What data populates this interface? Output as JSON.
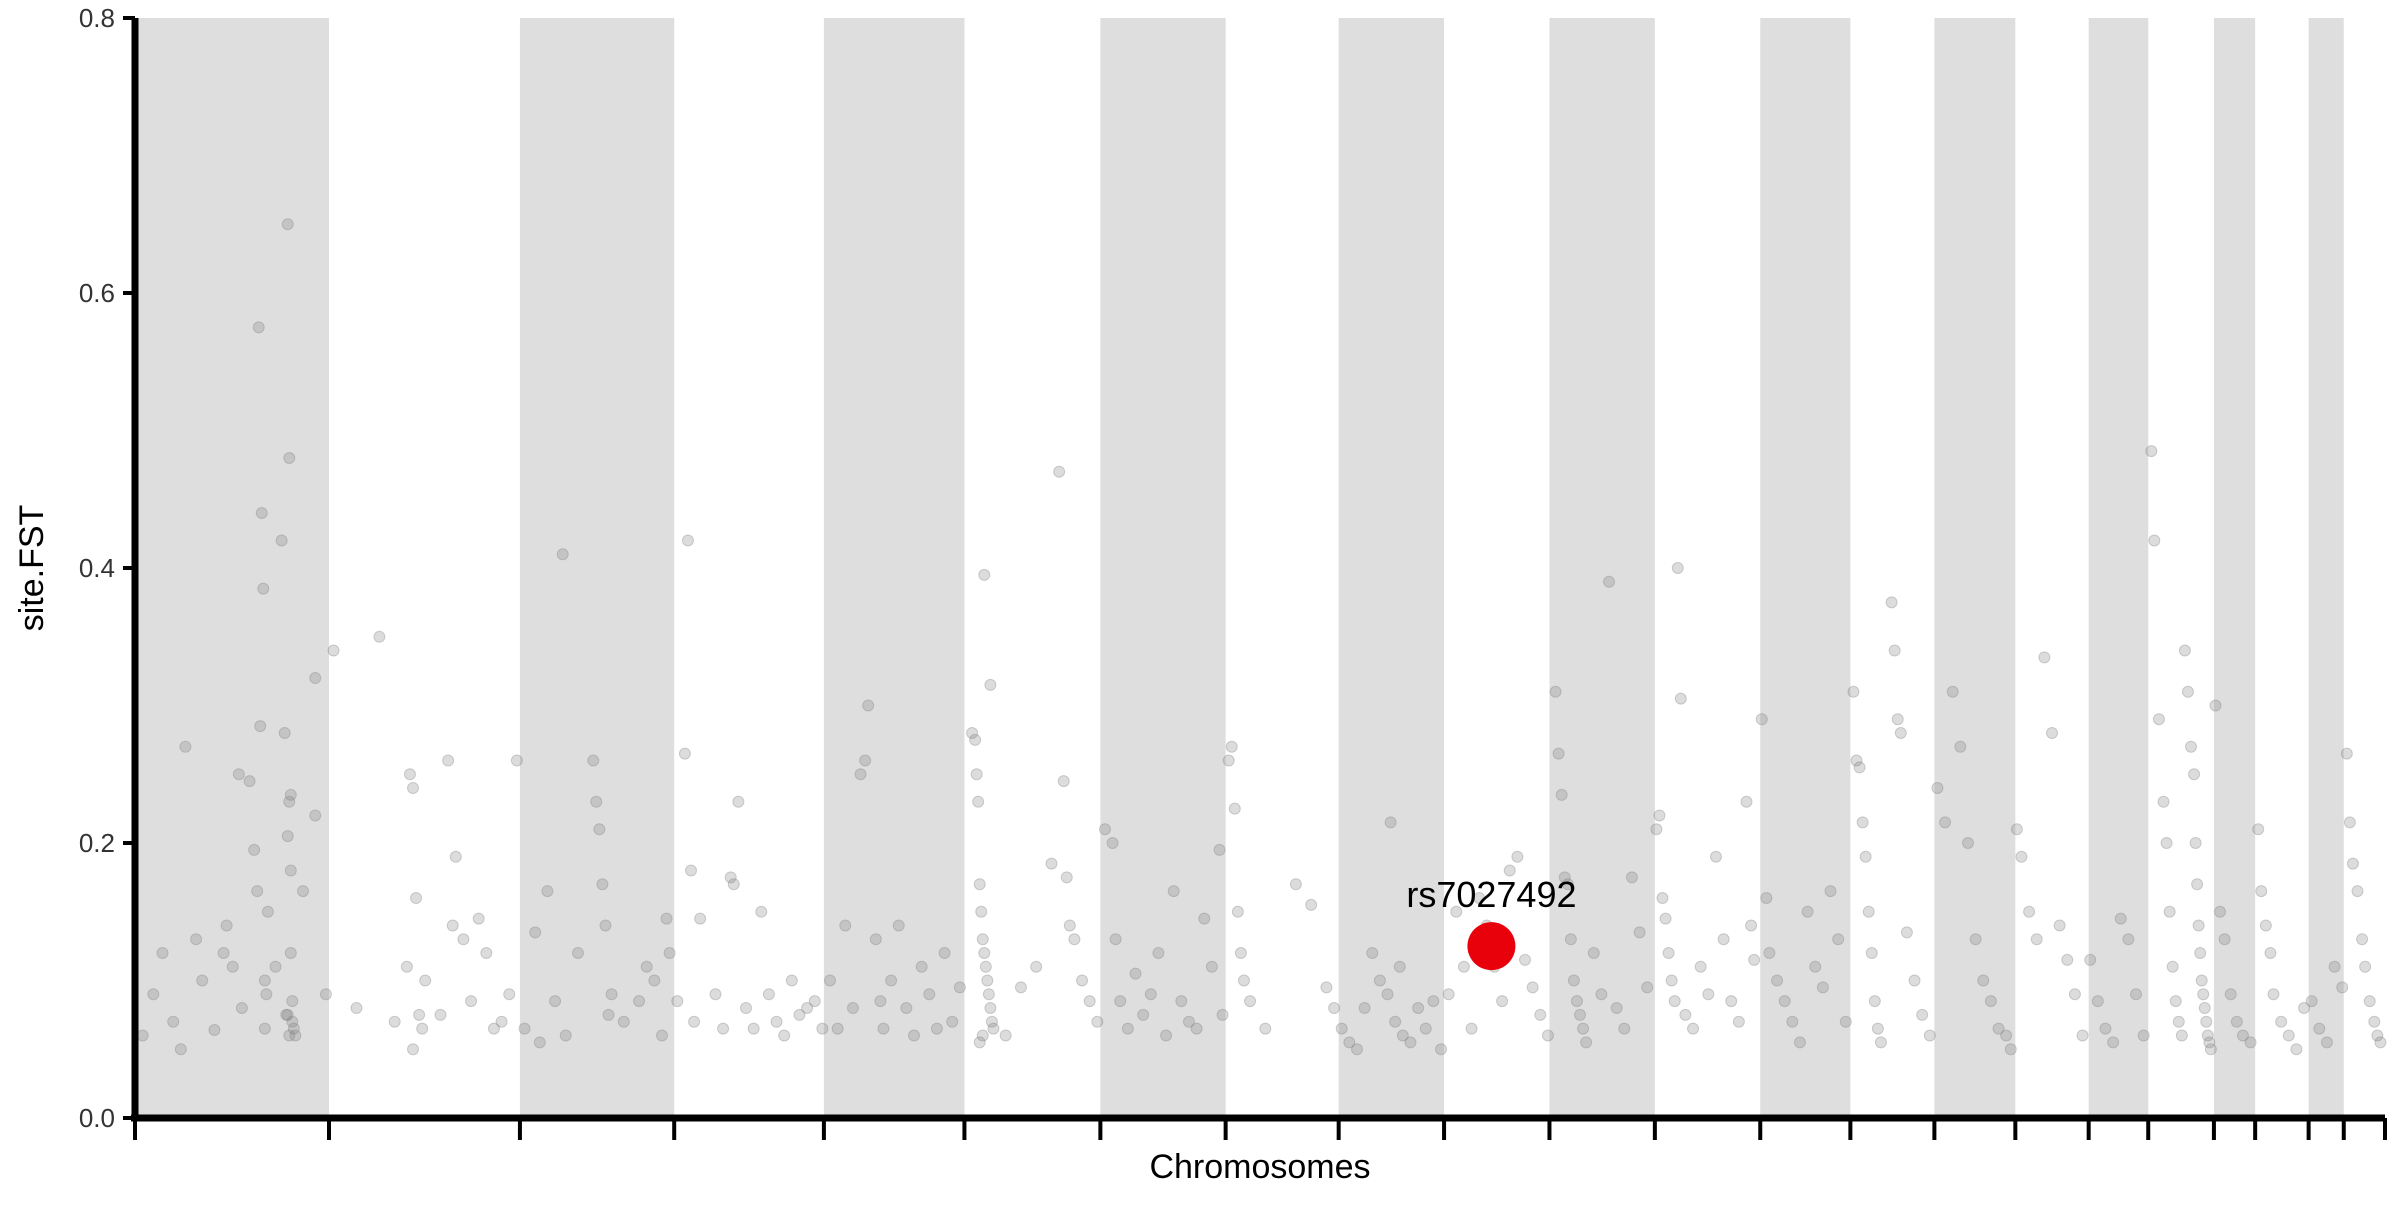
{
  "chart_data": {
    "type": "scatter",
    "title": "",
    "xlabel": "Chromosomes",
    "ylabel": "site.FST",
    "ylim": [
      0,
      0.8
    ],
    "y_ticks": [
      "0.0",
      "0.2",
      "0.4",
      "0.6",
      "0.8"
    ],
    "grid": false,
    "chromosome_bands": [
      {
        "index": 1,
        "shaded": true
      },
      {
        "index": 2,
        "shaded": false
      },
      {
        "index": 3,
        "shaded": true
      },
      {
        "index": 4,
        "shaded": false
      },
      {
        "index": 5,
        "shaded": true
      },
      {
        "index": 6,
        "shaded": false
      },
      {
        "index": 7,
        "shaded": true
      },
      {
        "index": 8,
        "shaded": false
      },
      {
        "index": 9,
        "shaded": true
      },
      {
        "index": 10,
        "shaded": false
      },
      {
        "index": 11,
        "shaded": true
      },
      {
        "index": 12,
        "shaded": false
      },
      {
        "index": 13,
        "shaded": true
      },
      {
        "index": 14,
        "shaded": false
      },
      {
        "index": 15,
        "shaded": true
      },
      {
        "index": 16,
        "shaded": false
      },
      {
        "index": 17,
        "shaded": true
      },
      {
        "index": 18,
        "shaded": false
      },
      {
        "index": 19,
        "shaded": true
      },
      {
        "index": 20,
        "shaded": false
      },
      {
        "index": 21,
        "shaded": true
      },
      {
        "index": 22,
        "shaded": false
      }
    ],
    "chromosome_boundaries": [
      0,
      127,
      252,
      353,
      451,
      543,
      632,
      714,
      788,
      857,
      926,
      995,
      1064,
      1123,
      1178,
      1231,
      1279,
      1318,
      1361,
      1388,
      1423,
      1446,
      1473
    ],
    "x_range": [
      0,
      1473
    ],
    "points": [
      [
        5,
        0.06
      ],
      [
        12,
        0.09
      ],
      [
        18,
        0.12
      ],
      [
        25,
        0.07
      ],
      [
        33,
        0.27
      ],
      [
        44,
        0.1
      ],
      [
        52,
        0.064
      ],
      [
        60,
        0.14
      ],
      [
        70,
        0.08
      ],
      [
        78,
        0.195
      ],
      [
        85,
        0.065
      ],
      [
        92,
        0.11
      ],
      [
        100,
        0.075
      ],
      [
        105,
        0.06
      ],
      [
        118,
        0.32
      ],
      [
        125,
        0.09
      ],
      [
        30,
        0.05
      ],
      [
        40,
        0.13
      ],
      [
        80,
        0.165
      ],
      [
        81,
        0.575
      ],
      [
        82,
        0.285
      ],
      [
        83,
        0.44
      ],
      [
        84,
        0.385
      ],
      [
        85,
        0.1
      ],
      [
        86,
        0.09
      ],
      [
        87,
        0.15
      ],
      [
        96,
        0.42
      ],
      [
        98,
        0.28
      ],
      [
        100,
        0.65
      ],
      [
        101,
        0.48
      ],
      [
        101,
        0.23
      ],
      [
        102,
        0.18
      ],
      [
        102,
        0.12
      ],
      [
        103,
        0.085
      ],
      [
        101,
        0.06
      ],
      [
        99,
        0.075
      ],
      [
        103,
        0.07
      ],
      [
        104,
        0.065
      ],
      [
        102,
        0.235
      ],
      [
        100,
        0.205
      ],
      [
        110,
        0.165
      ],
      [
        118,
        0.22
      ],
      [
        68,
        0.25
      ],
      [
        75,
        0.245
      ],
      [
        64,
        0.11
      ],
      [
        58,
        0.12
      ],
      [
        130,
        0.34
      ],
      [
        145,
        0.08
      ],
      [
        160,
        0.35
      ],
      [
        170,
        0.07
      ],
      [
        178,
        0.11
      ],
      [
        180,
        0.25
      ],
      [
        182,
        0.24
      ],
      [
        184,
        0.16
      ],
      [
        186,
        0.075
      ],
      [
        188,
        0.065
      ],
      [
        190,
        0.1
      ],
      [
        200,
        0.075
      ],
      [
        205,
        0.26
      ],
      [
        208,
        0.14
      ],
      [
        210,
        0.19
      ],
      [
        215,
        0.13
      ],
      [
        220,
        0.085
      ],
      [
        225,
        0.145
      ],
      [
        230,
        0.12
      ],
      [
        235,
        0.065
      ],
      [
        240,
        0.07
      ],
      [
        245,
        0.09
      ],
      [
        250,
        0.26
      ],
      [
        182,
        0.05
      ],
      [
        255,
        0.065
      ],
      [
        262,
        0.135
      ],
      [
        265,
        0.055
      ],
      [
        270,
        0.165
      ],
      [
        275,
        0.085
      ],
      [
        280,
        0.41
      ],
      [
        282,
        0.06
      ],
      [
        290,
        0.12
      ],
      [
        300,
        0.26
      ],
      [
        302,
        0.23
      ],
      [
        304,
        0.21
      ],
      [
        306,
        0.17
      ],
      [
        308,
        0.14
      ],
      [
        310,
        0.075
      ],
      [
        312,
        0.09
      ],
      [
        320,
        0.07
      ],
      [
        330,
        0.085
      ],
      [
        340,
        0.1
      ],
      [
        345,
        0.06
      ],
      [
        350,
        0.12
      ],
      [
        348,
        0.145
      ],
      [
        335,
        0.11
      ],
      [
        355,
        0.085
      ],
      [
        360,
        0.265
      ],
      [
        362,
        0.42
      ],
      [
        364,
        0.18
      ],
      [
        366,
        0.07
      ],
      [
        370,
        0.145
      ],
      [
        380,
        0.09
      ],
      [
        385,
        0.065
      ],
      [
        390,
        0.175
      ],
      [
        392,
        0.17
      ],
      [
        395,
        0.23
      ],
      [
        400,
        0.08
      ],
      [
        405,
        0.065
      ],
      [
        410,
        0.15
      ],
      [
        415,
        0.09
      ],
      [
        420,
        0.07
      ],
      [
        425,
        0.06
      ],
      [
        430,
        0.1
      ],
      [
        435,
        0.075
      ],
      [
        440,
        0.08
      ],
      [
        445,
        0.085
      ],
      [
        450,
        0.065
      ],
      [
        455,
        0.1
      ],
      [
        460,
        0.065
      ],
      [
        465,
        0.14
      ],
      [
        470,
        0.08
      ],
      [
        475,
        0.25
      ],
      [
        478,
        0.26
      ],
      [
        480,
        0.3
      ],
      [
        485,
        0.13
      ],
      [
        488,
        0.085
      ],
      [
        490,
        0.065
      ],
      [
        495,
        0.1
      ],
      [
        500,
        0.14
      ],
      [
        505,
        0.08
      ],
      [
        510,
        0.06
      ],
      [
        515,
        0.11
      ],
      [
        520,
        0.09
      ],
      [
        525,
        0.065
      ],
      [
        530,
        0.12
      ],
      [
        535,
        0.07
      ],
      [
        540,
        0.095
      ],
      [
        548,
        0.28
      ],
      [
        550,
        0.275
      ],
      [
        551,
        0.25
      ],
      [
        552,
        0.23
      ],
      [
        553,
        0.17
      ],
      [
        554,
        0.15
      ],
      [
        555,
        0.13
      ],
      [
        556,
        0.12
      ],
      [
        557,
        0.11
      ],
      [
        558,
        0.1
      ],
      [
        559,
        0.09
      ],
      [
        560,
        0.08
      ],
      [
        561,
        0.07
      ],
      [
        562,
        0.065
      ],
      [
        555,
        0.06
      ],
      [
        553,
        0.055
      ],
      [
        556,
        0.395
      ],
      [
        560,
        0.315
      ],
      [
        570,
        0.06
      ],
      [
        580,
        0.095
      ],
      [
        590,
        0.11
      ],
      [
        600,
        0.185
      ],
      [
        605,
        0.47
      ],
      [
        608,
        0.245
      ],
      [
        610,
        0.175
      ],
      [
        612,
        0.14
      ],
      [
        615,
        0.13
      ],
      [
        620,
        0.1
      ],
      [
        625,
        0.085
      ],
      [
        630,
        0.07
      ],
      [
        635,
        0.21
      ],
      [
        640,
        0.2
      ],
      [
        642,
        0.13
      ],
      [
        645,
        0.085
      ],
      [
        650,
        0.065
      ],
      [
        655,
        0.105
      ],
      [
        660,
        0.075
      ],
      [
        665,
        0.09
      ],
      [
        670,
        0.12
      ],
      [
        675,
        0.06
      ],
      [
        680,
        0.165
      ],
      [
        685,
        0.085
      ],
      [
        690,
        0.07
      ],
      [
        695,
        0.065
      ],
      [
        700,
        0.145
      ],
      [
        705,
        0.11
      ],
      [
        710,
        0.195
      ],
      [
        712,
        0.075
      ],
      [
        716,
        0.26
      ],
      [
        718,
        0.27
      ],
      [
        720,
        0.225
      ],
      [
        722,
        0.15
      ],
      [
        724,
        0.12
      ],
      [
        726,
        0.1
      ],
      [
        730,
        0.085
      ],
      [
        740,
        0.065
      ],
      [
        760,
        0.17
      ],
      [
        770,
        0.155
      ],
      [
        780,
        0.095
      ],
      [
        785,
        0.08
      ],
      [
        790,
        0.065
      ],
      [
        795,
        0.055
      ],
      [
        800,
        0.05
      ],
      [
        805,
        0.08
      ],
      [
        810,
        0.12
      ],
      [
        815,
        0.1
      ],
      [
        820,
        0.09
      ],
      [
        825,
        0.07
      ],
      [
        830,
        0.06
      ],
      [
        835,
        0.055
      ],
      [
        840,
        0.08
      ],
      [
        845,
        0.065
      ],
      [
        850,
        0.085
      ],
      [
        855,
        0.05
      ],
      [
        822,
        0.215
      ],
      [
        828,
        0.11
      ],
      [
        860,
        0.09
      ],
      [
        865,
        0.15
      ],
      [
        870,
        0.11
      ],
      [
        875,
        0.065
      ],
      [
        880,
        0.16
      ],
      [
        885,
        0.14
      ],
      [
        890,
        0.11
      ],
      [
        895,
        0.085
      ],
      [
        900,
        0.18
      ],
      [
        905,
        0.19
      ],
      [
        910,
        0.115
      ],
      [
        915,
        0.095
      ],
      [
        920,
        0.075
      ],
      [
        925,
        0.06
      ],
      [
        930,
        0.31
      ],
      [
        932,
        0.265
      ],
      [
        934,
        0.235
      ],
      [
        936,
        0.175
      ],
      [
        938,
        0.17
      ],
      [
        940,
        0.13
      ],
      [
        942,
        0.1
      ],
      [
        944,
        0.085
      ],
      [
        946,
        0.075
      ],
      [
        948,
        0.065
      ],
      [
        950,
        0.055
      ],
      [
        955,
        0.12
      ],
      [
        960,
        0.09
      ],
      [
        965,
        0.39
      ],
      [
        970,
        0.08
      ],
      [
        975,
        0.065
      ],
      [
        980,
        0.175
      ],
      [
        985,
        0.135
      ],
      [
        990,
        0.095
      ],
      [
        996,
        0.21
      ],
      [
        998,
        0.22
      ],
      [
        1000,
        0.16
      ],
      [
        1002,
        0.145
      ],
      [
        1004,
        0.12
      ],
      [
        1006,
        0.1
      ],
      [
        1008,
        0.085
      ],
      [
        1010,
        0.4
      ],
      [
        1012,
        0.305
      ],
      [
        1015,
        0.075
      ],
      [
        1020,
        0.065
      ],
      [
        1025,
        0.11
      ],
      [
        1030,
        0.09
      ],
      [
        1035,
        0.19
      ],
      [
        1040,
        0.13
      ],
      [
        1045,
        0.085
      ],
      [
        1050,
        0.07
      ],
      [
        1055,
        0.23
      ],
      [
        1058,
        0.14
      ],
      [
        1060,
        0.115
      ],
      [
        1065,
        0.29
      ],
      [
        1068,
        0.16
      ],
      [
        1070,
        0.12
      ],
      [
        1075,
        0.1
      ],
      [
        1080,
        0.085
      ],
      [
        1085,
        0.07
      ],
      [
        1090,
        0.055
      ],
      [
        1095,
        0.15
      ],
      [
        1100,
        0.11
      ],
      [
        1105,
        0.095
      ],
      [
        1110,
        0.165
      ],
      [
        1115,
        0.13
      ],
      [
        1120,
        0.07
      ],
      [
        1125,
        0.31
      ],
      [
        1127,
        0.26
      ],
      [
        1129,
        0.255
      ],
      [
        1131,
        0.215
      ],
      [
        1133,
        0.19
      ],
      [
        1135,
        0.15
      ],
      [
        1137,
        0.12
      ],
      [
        1139,
        0.085
      ],
      [
        1141,
        0.065
      ],
      [
        1143,
        0.055
      ],
      [
        1150,
        0.375
      ],
      [
        1152,
        0.34
      ],
      [
        1154,
        0.29
      ],
      [
        1156,
        0.28
      ],
      [
        1160,
        0.135
      ],
      [
        1165,
        0.1
      ],
      [
        1170,
        0.075
      ],
      [
        1175,
        0.06
      ],
      [
        1180,
        0.24
      ],
      [
        1185,
        0.215
      ],
      [
        1190,
        0.31
      ],
      [
        1195,
        0.27
      ],
      [
        1200,
        0.2
      ],
      [
        1205,
        0.13
      ],
      [
        1210,
        0.1
      ],
      [
        1215,
        0.085
      ],
      [
        1220,
        0.065
      ],
      [
        1225,
        0.06
      ],
      [
        1228,
        0.05
      ],
      [
        1232,
        0.21
      ],
      [
        1235,
        0.19
      ],
      [
        1240,
        0.15
      ],
      [
        1245,
        0.13
      ],
      [
        1250,
        0.335
      ],
      [
        1255,
        0.28
      ],
      [
        1260,
        0.14
      ],
      [
        1265,
        0.115
      ],
      [
        1270,
        0.09
      ],
      [
        1275,
        0.06
      ],
      [
        1280,
        0.115
      ],
      [
        1285,
        0.085
      ],
      [
        1290,
        0.065
      ],
      [
        1295,
        0.055
      ],
      [
        1300,
        0.145
      ],
      [
        1305,
        0.13
      ],
      [
        1310,
        0.09
      ],
      [
        1315,
        0.06
      ],
      [
        1320,
        0.485
      ],
      [
        1322,
        0.42
      ],
      [
        1325,
        0.29
      ],
      [
        1328,
        0.23
      ],
      [
        1330,
        0.2
      ],
      [
        1332,
        0.15
      ],
      [
        1334,
        0.11
      ],
      [
        1336,
        0.085
      ],
      [
        1338,
        0.07
      ],
      [
        1340,
        0.06
      ],
      [
        1342,
        0.34
      ],
      [
        1344,
        0.31
      ],
      [
        1346,
        0.27
      ],
      [
        1348,
        0.25
      ],
      [
        1349,
        0.2
      ],
      [
        1350,
        0.17
      ],
      [
        1351,
        0.14
      ],
      [
        1352,
        0.12
      ],
      [
        1353,
        0.1
      ],
      [
        1354,
        0.09
      ],
      [
        1355,
        0.08
      ],
      [
        1356,
        0.07
      ],
      [
        1357,
        0.06
      ],
      [
        1358,
        0.055
      ],
      [
        1359,
        0.05
      ],
      [
        1362,
        0.3
      ],
      [
        1365,
        0.15
      ],
      [
        1368,
        0.13
      ],
      [
        1372,
        0.09
      ],
      [
        1376,
        0.07
      ],
      [
        1380,
        0.06
      ],
      [
        1385,
        0.055
      ],
      [
        1390,
        0.21
      ],
      [
        1392,
        0.165
      ],
      [
        1395,
        0.14
      ],
      [
        1398,
        0.12
      ],
      [
        1400,
        0.09
      ],
      [
        1405,
        0.07
      ],
      [
        1410,
        0.06
      ],
      [
        1415,
        0.05
      ],
      [
        1420,
        0.08
      ],
      [
        1425,
        0.085
      ],
      [
        1430,
        0.065
      ],
      [
        1435,
        0.055
      ],
      [
        1440,
        0.11
      ],
      [
        1445,
        0.095
      ],
      [
        1448,
        0.265
      ],
      [
        1450,
        0.215
      ],
      [
        1452,
        0.185
      ],
      [
        1455,
        0.165
      ],
      [
        1458,
        0.13
      ],
      [
        1460,
        0.11
      ],
      [
        1463,
        0.085
      ],
      [
        1466,
        0.07
      ],
      [
        1468,
        0.06
      ],
      [
        1470,
        0.055
      ]
    ],
    "highlight": {
      "label": "rs7027492",
      "x": 888,
      "y": 0.125,
      "color": "#e8000b"
    },
    "colors": {
      "band": "#dedede",
      "point": "#808080",
      "axis": "#000000"
    }
  }
}
